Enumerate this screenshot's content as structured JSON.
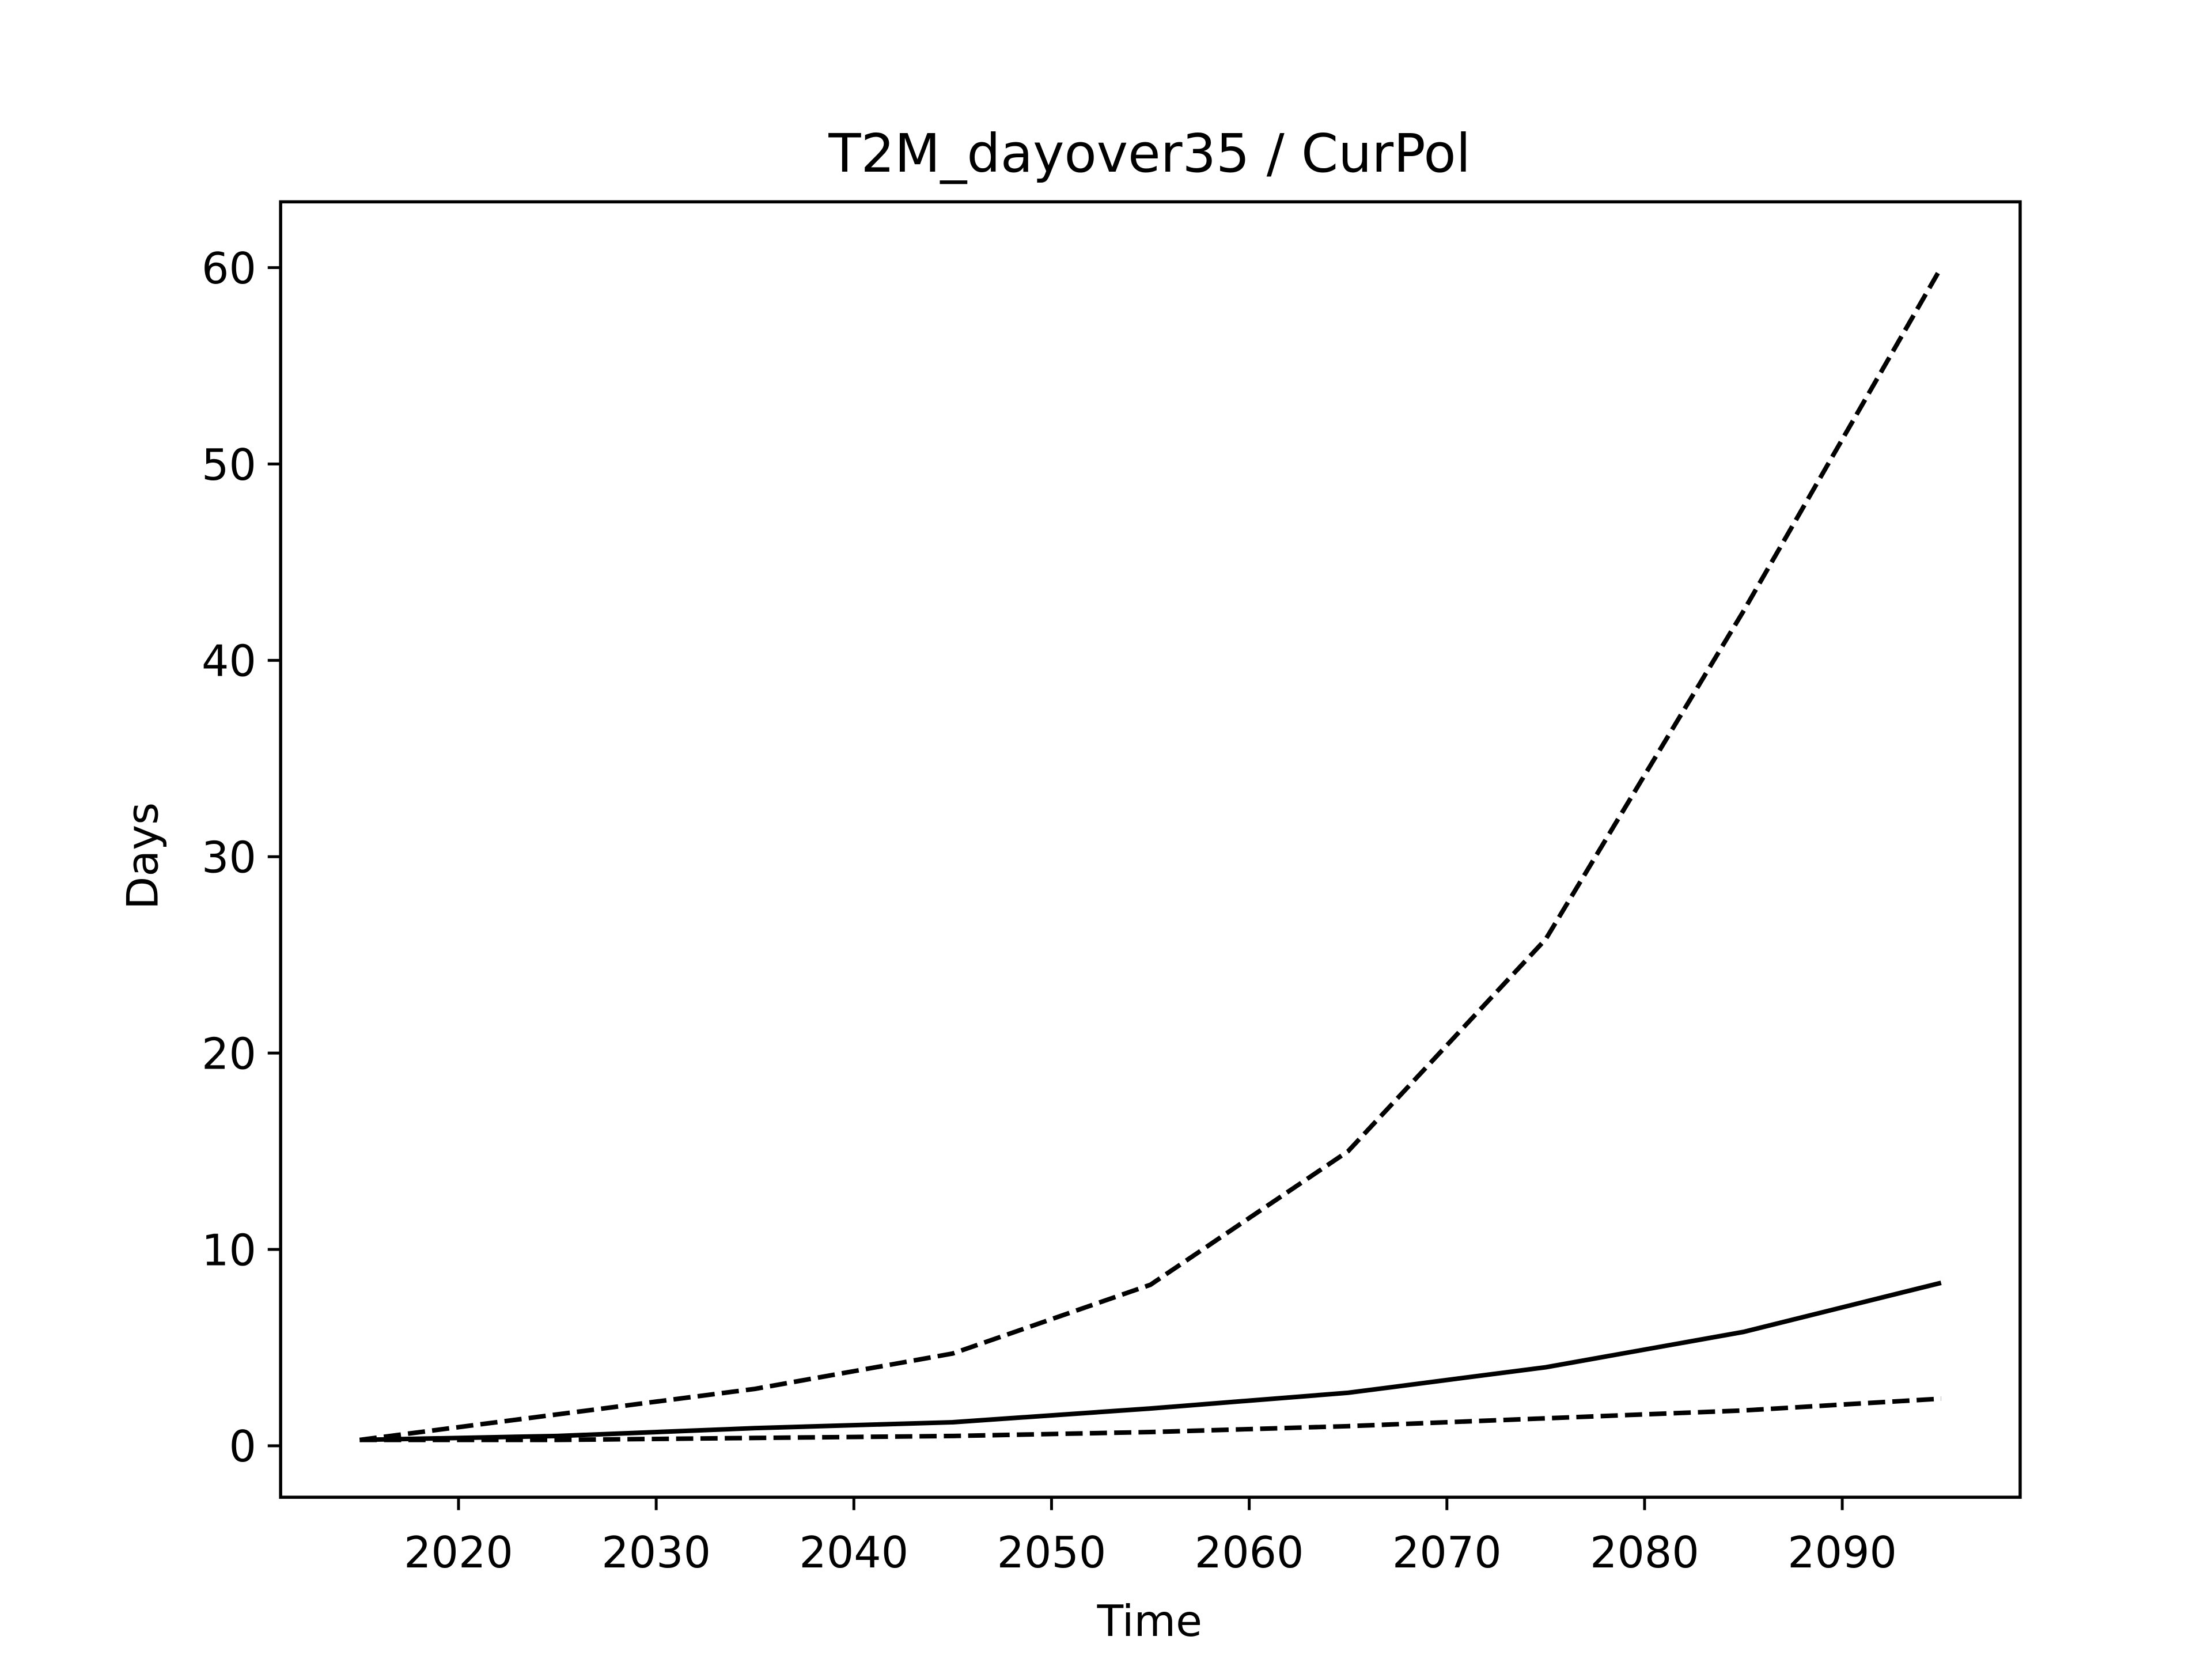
{
  "chart_data": {
    "type": "line",
    "title": "T2M_dayover35 / CurPol",
    "xlabel": "Time",
    "ylabel": "Days",
    "x": [
      2015,
      2025,
      2035,
      2045,
      2055,
      2065,
      2075,
      2085,
      2095
    ],
    "series": [
      {
        "color": "#000000",
        "linestyle": "dashed",
        "values": [
          0.3,
          1.6,
          2.9,
          4.7,
          8.2,
          15.0,
          25.8,
          42.5,
          60.0
        ]
      },
      {
        "color": "#000000",
        "linestyle": "solid",
        "values": [
          0.3,
          0.5,
          0.9,
          1.2,
          1.9,
          2.7,
          4.0,
          5.8,
          8.3
        ]
      },
      {
        "color": "#000000",
        "linestyle": "dashed",
        "values": [
          0.3,
          0.3,
          0.4,
          0.5,
          0.7,
          1.0,
          1.4,
          1.8,
          2.4
        ]
      }
    ],
    "xlim": [
      2011,
      2099
    ],
    "xticks": [
      2020,
      2030,
      2040,
      2050,
      2060,
      2070,
      2080,
      2090
    ],
    "ylim": [
      -2.62,
      63.35
    ],
    "yticks": [
      0,
      10,
      20,
      30,
      40,
      50,
      60
    ],
    "grid": false
  }
}
